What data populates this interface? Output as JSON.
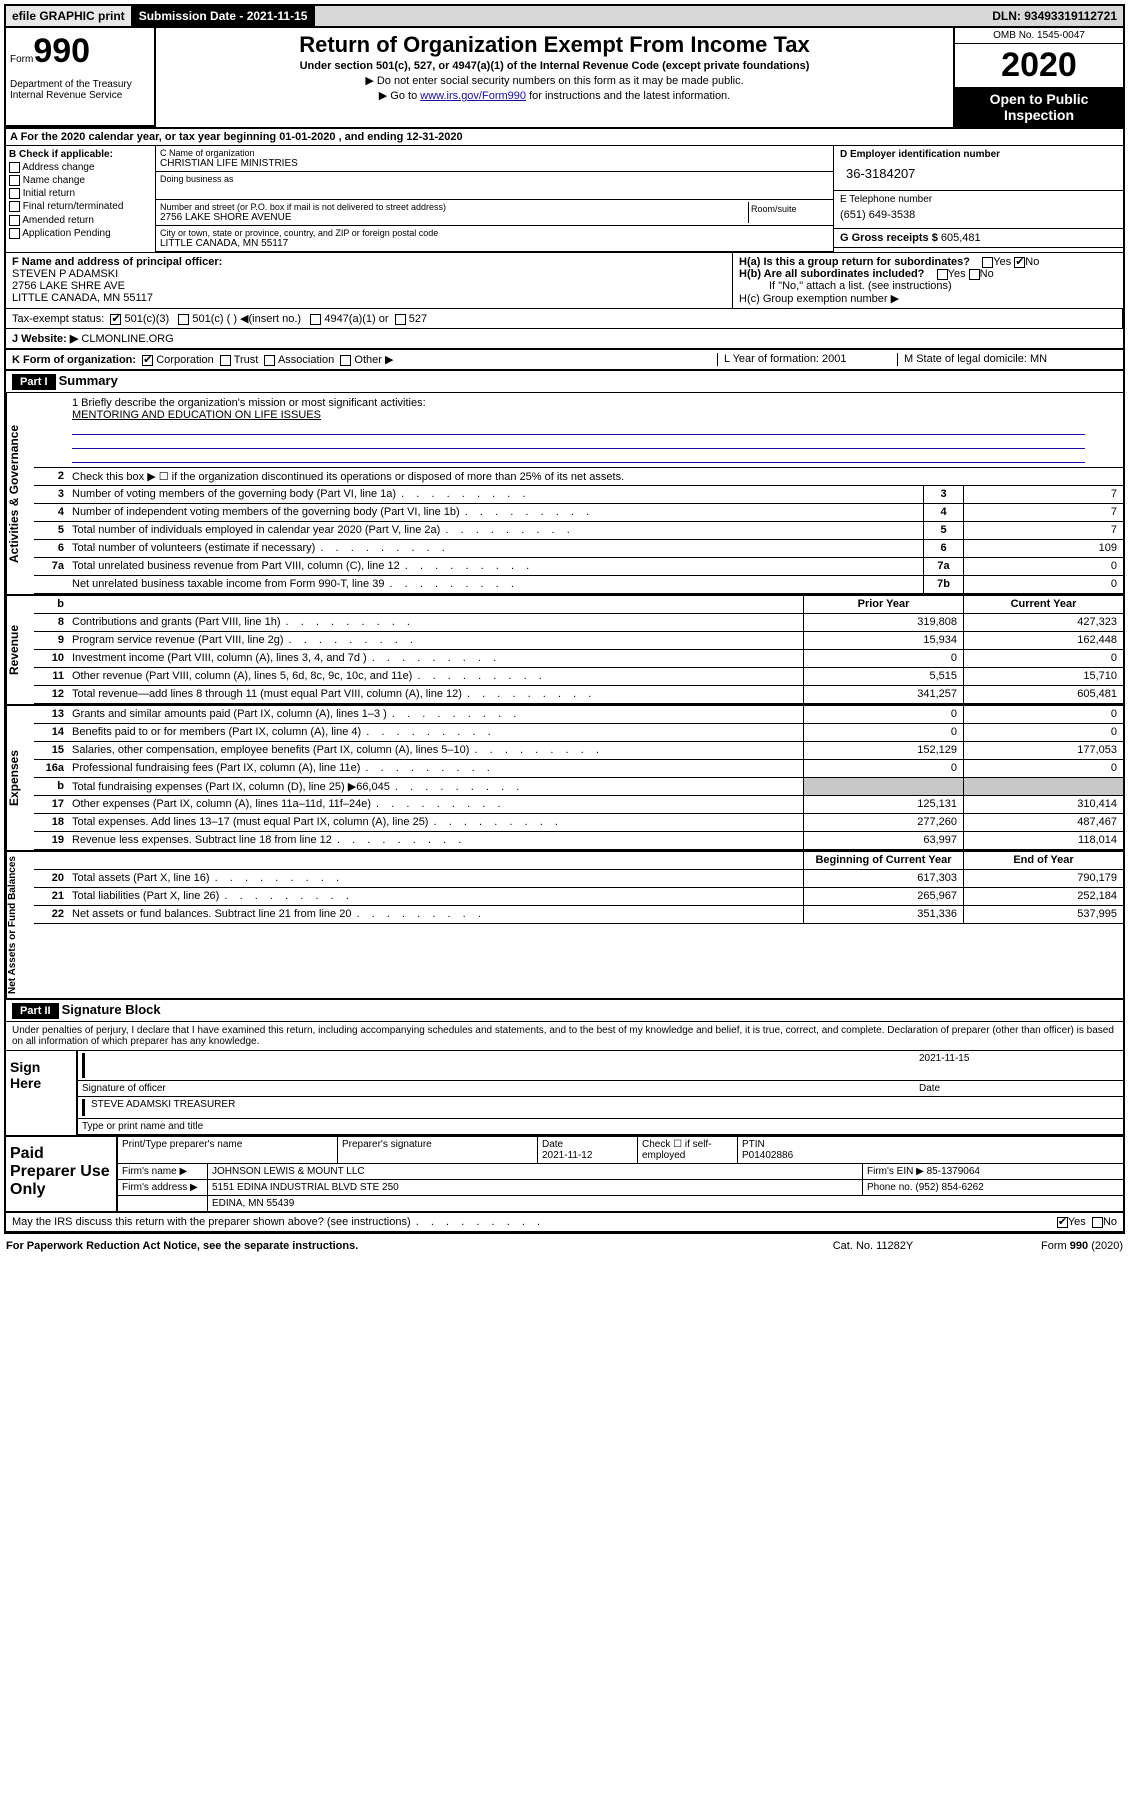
{
  "topbar": {
    "efile": "efile GRAPHIC print",
    "submission": "Submission Date - 2021-11-15",
    "dln": "DLN: 93493319112721"
  },
  "header": {
    "form_prefix": "Form",
    "form_num": "990",
    "dept": "Department of the Treasury\nInternal Revenue Service",
    "title": "Return of Organization Exempt From Income Tax",
    "subtitle": "Under section 501(c), 527, or 4947(a)(1) of the Internal Revenue Code (except private foundations)",
    "note1": "▶ Do not enter social security numbers on this form as it may be made public.",
    "note2_pre": "▶ Go to ",
    "note2_link": "www.irs.gov/Form990",
    "note2_post": " for instructions and the latest information.",
    "omb": "OMB No. 1545-0047",
    "year": "2020",
    "open": "Open to Public Inspection"
  },
  "period": "A For the 2020 calendar year, or tax year beginning 01-01-2020   , and ending 12-31-2020",
  "box_b": {
    "label": "B Check if applicable:",
    "items": [
      "Address change",
      "Name change",
      "Initial return",
      "Final return/terminated",
      "Amended return",
      "Application Pending"
    ]
  },
  "box_c": {
    "name_label": "C Name of organization",
    "name": "CHRISTIAN LIFE MINISTRIES",
    "dba_label": "Doing business as",
    "addr_label": "Number and street (or P.O. box if mail is not delivered to street address)",
    "room": "Room/suite",
    "addr": "2756 LAKE SHORE AVENUE",
    "city_label": "City or town, state or province, country, and ZIP or foreign postal code",
    "city": "LITTLE CANADA, MN  55117"
  },
  "box_d": {
    "label": "D Employer identification number",
    "value": "36-3184207"
  },
  "box_e": {
    "label": "E Telephone number",
    "value": "(651) 649-3538"
  },
  "box_g": {
    "label": "G Gross receipts $",
    "value": "605,481"
  },
  "box_f": {
    "label": "F  Name and address of principal officer:",
    "name": "STEVEN P ADAMSKI",
    "addr1": "2756 LAKE SHRE AVE",
    "addr2": "LITTLE CANADA, MN  55117"
  },
  "box_h": {
    "ha": "H(a)  Is this a group return for subordinates?",
    "hb": "H(b)  Are all subordinates included?",
    "hb_note": "If \"No,\" attach a list. (see instructions)",
    "hc": "H(c)  Group exemption number ▶",
    "yes": "Yes",
    "no": "No"
  },
  "tax_status": "Tax-exempt status:",
  "tax_opts": [
    "501(c)(3)",
    "501(c) (  ) ◀(insert no.)",
    "4947(a)(1) or",
    "527"
  ],
  "website_label": "J  Website: ▶",
  "website": "CLMONLINE.ORG",
  "form_org": {
    "k": "K Form of organization:",
    "opts": [
      "Corporation",
      "Trust",
      "Association",
      "Other ▶"
    ],
    "l": "L Year of formation: 2001",
    "m": "M State of legal domicile: MN"
  },
  "part1": {
    "label": "Part I",
    "title": "Summary"
  },
  "mission": {
    "q": "1  Briefly describe the organization's mission or most significant activities:",
    "text": "MENTORING AND EDUCATION ON LIFE ISSUES"
  },
  "line2": "Check this box ▶ ☐ if the organization discontinued its operations or disposed of more than 25% of its net assets.",
  "gov_rows": [
    {
      "n": "3",
      "d": "Number of voting members of the governing body (Part VI, line 1a)",
      "c": "3",
      "v": "7"
    },
    {
      "n": "4",
      "d": "Number of independent voting members of the governing body (Part VI, line 1b)",
      "c": "4",
      "v": "7"
    },
    {
      "n": "5",
      "d": "Total number of individuals employed in calendar year 2020 (Part V, line 2a)",
      "c": "5",
      "v": "7"
    },
    {
      "n": "6",
      "d": "Total number of volunteers (estimate if necessary)",
      "c": "6",
      "v": "109"
    },
    {
      "n": "7a",
      "d": "Total unrelated business revenue from Part VIII, column (C), line 12",
      "c": "7a",
      "v": "0"
    },
    {
      "n": "",
      "d": "Net unrelated business taxable income from Form 990-T, line 39",
      "c": "7b",
      "v": "0"
    }
  ],
  "col_headers": {
    "b": "b",
    "prior": "Prior Year",
    "current": "Current Year",
    "begin": "Beginning of Current Year",
    "end": "End of Year"
  },
  "revenue": [
    {
      "n": "8",
      "d": "Contributions and grants (Part VIII, line 1h)",
      "a": "319,808",
      "b": "427,323"
    },
    {
      "n": "9",
      "d": "Program service revenue (Part VIII, line 2g)",
      "a": "15,934",
      "b": "162,448"
    },
    {
      "n": "10",
      "d": "Investment income (Part VIII, column (A), lines 3, 4, and 7d )",
      "a": "0",
      "b": "0"
    },
    {
      "n": "11",
      "d": "Other revenue (Part VIII, column (A), lines 5, 6d, 8c, 9c, 10c, and 11e)",
      "a": "5,515",
      "b": "15,710"
    },
    {
      "n": "12",
      "d": "Total revenue—add lines 8 through 11 (must equal Part VIII, column (A), line 12)",
      "a": "341,257",
      "b": "605,481"
    }
  ],
  "expenses": [
    {
      "n": "13",
      "d": "Grants and similar amounts paid (Part IX, column (A), lines 1–3 )",
      "a": "0",
      "b": "0"
    },
    {
      "n": "14",
      "d": "Benefits paid to or for members (Part IX, column (A), line 4)",
      "a": "0",
      "b": "0"
    },
    {
      "n": "15",
      "d": "Salaries, other compensation, employee benefits (Part IX, column (A), lines 5–10)",
      "a": "152,129",
      "b": "177,053"
    },
    {
      "n": "16a",
      "d": "Professional fundraising fees (Part IX, column (A), line 11e)",
      "a": "0",
      "b": "0"
    },
    {
      "n": "b",
      "d": "Total fundraising expenses (Part IX, column (D), line 25) ▶66,045",
      "a": "shade",
      "b": "shade"
    },
    {
      "n": "17",
      "d": "Other expenses (Part IX, column (A), lines 11a–11d, 11f–24e)",
      "a": "125,131",
      "b": "310,414"
    },
    {
      "n": "18",
      "d": "Total expenses. Add lines 13–17 (must equal Part IX, column (A), line 25)",
      "a": "277,260",
      "b": "487,467"
    },
    {
      "n": "19",
      "d": "Revenue less expenses. Subtract line 18 from line 12",
      "a": "63,997",
      "b": "118,014"
    }
  ],
  "netassets": [
    {
      "n": "20",
      "d": "Total assets (Part X, line 16)",
      "a": "617,303",
      "b": "790,179"
    },
    {
      "n": "21",
      "d": "Total liabilities (Part X, line 26)",
      "a": "265,967",
      "b": "252,184"
    },
    {
      "n": "22",
      "d": "Net assets or fund balances. Subtract line 21 from line 20",
      "a": "351,336",
      "b": "537,995"
    }
  ],
  "labels": {
    "gov": "Activities & Governance",
    "rev": "Revenue",
    "exp": "Expenses",
    "net": "Net Assets or Fund Balances"
  },
  "part2": {
    "label": "Part II",
    "title": "Signature Block"
  },
  "penalty": "Under penalties of perjury, I declare that I have examined this return, including accompanying schedules and statements, and to the best of my knowledge and belief, it is true, correct, and complete. Declaration of preparer (other than officer) is based on all information of which preparer has any knowledge.",
  "sign": {
    "label": "Sign Here",
    "sig_officer": "Signature of officer",
    "date": "2021-11-15",
    "date_lbl": "Date",
    "name": "STEVE ADAMSKI TREASURER",
    "name_lbl": "Type or print name and title"
  },
  "prep": {
    "label": "Paid Preparer Use Only",
    "h1": "Print/Type preparer's name",
    "h2": "Preparer's signature",
    "h3": "Date",
    "h3v": "2021-11-12",
    "h4": "Check ☐ if self-employed",
    "h5": "PTIN",
    "h5v": "P01402886",
    "firm_lbl": "Firm's name   ▶",
    "firm": "JOHNSON LEWIS & MOUNT LLC",
    "ein_lbl": "Firm's EIN ▶",
    "ein": "85-1379064",
    "addr_lbl": "Firm's address ▶",
    "addr": "5151 EDINA INDUSTRIAL BLVD STE 250",
    "addr2": "EDINA, MN  55439",
    "phone_lbl": "Phone no.",
    "phone": "(952) 854-6262"
  },
  "discuss": "May the IRS discuss this return with the preparer shown above? (see instructions)",
  "footer": {
    "l": "For Paperwork Reduction Act Notice, see the separate instructions.",
    "m": "Cat. No. 11282Y",
    "r": "Form 990 (2020)"
  }
}
